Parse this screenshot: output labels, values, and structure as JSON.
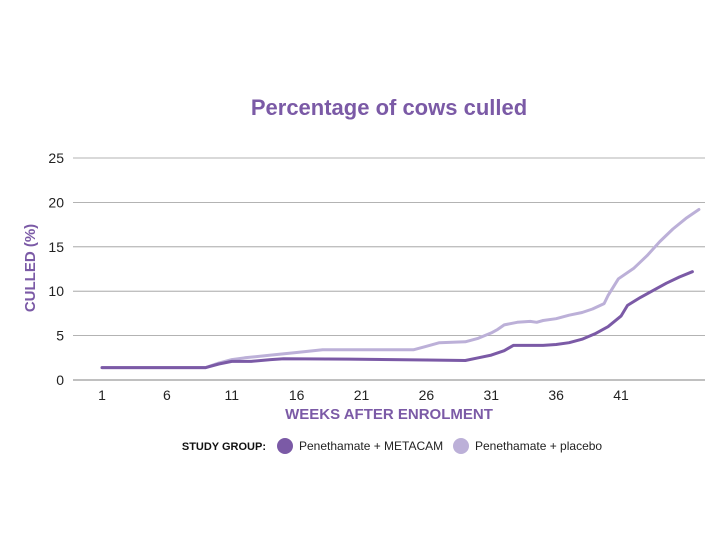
{
  "colors": {
    "accent": "#7b5aa6",
    "series_dark": "#7b5aa6",
    "series_light": "#bcb0d8",
    "grid": "#9a9a9a"
  },
  "chart_data": {
    "type": "line",
    "title": "Percentage of cows culled",
    "xlabel": "WEEKS AFTER ENROLMENT",
    "ylabel": "CULLED (%)",
    "xlim": [
      0,
      47
    ],
    "ylim": [
      0,
      25
    ],
    "x_ticks": [
      1,
      6,
      11,
      16,
      21,
      26,
      31,
      36,
      41
    ],
    "y_ticks": [
      0,
      5,
      10,
      15,
      20,
      25
    ],
    "grid": true,
    "legend_position": "bottom",
    "legend_title": "STUDY GROUP:",
    "series": [
      {
        "name": "Penethamate + METACAM",
        "color": "#7b5aa6",
        "points": [
          [
            1,
            1.4
          ],
          [
            9,
            1.4
          ],
          [
            10,
            1.8
          ],
          [
            11,
            2.1
          ],
          [
            12.5,
            2.1
          ],
          [
            14,
            2.3
          ],
          [
            15,
            2.4
          ],
          [
            20,
            2.35
          ],
          [
            26,
            2.25
          ],
          [
            29,
            2.2
          ],
          [
            30,
            2.5
          ],
          [
            31,
            2.8
          ],
          [
            32,
            3.3
          ],
          [
            32.7,
            3.9
          ],
          [
            34,
            3.9
          ],
          [
            35,
            3.9
          ],
          [
            36,
            4.0
          ],
          [
            37,
            4.2
          ],
          [
            38,
            4.6
          ],
          [
            39,
            5.2
          ],
          [
            40,
            6.0
          ],
          [
            41,
            7.2
          ],
          [
            41.5,
            8.4
          ],
          [
            42.5,
            9.3
          ],
          [
            43.5,
            10.1
          ],
          [
            44.5,
            10.9
          ],
          [
            45.5,
            11.6
          ],
          [
            46.5,
            12.2
          ]
        ]
      },
      {
        "name": "Penethamate + placebo",
        "color": "#bcb0d8",
        "points": [
          [
            1,
            1.4
          ],
          [
            9,
            1.4
          ],
          [
            10,
            1.9
          ],
          [
            11,
            2.3
          ],
          [
            12,
            2.5
          ],
          [
            14,
            2.8
          ],
          [
            16,
            3.1
          ],
          [
            18,
            3.4
          ],
          [
            25,
            3.4
          ],
          [
            26,
            3.8
          ],
          [
            27,
            4.2
          ],
          [
            29,
            4.3
          ],
          [
            30,
            4.7
          ],
          [
            31,
            5.3
          ],
          [
            31.5,
            5.7
          ],
          [
            32,
            6.2
          ],
          [
            33,
            6.5
          ],
          [
            34,
            6.6
          ],
          [
            34.5,
            6.5
          ],
          [
            35,
            6.7
          ],
          [
            36,
            6.9
          ],
          [
            37,
            7.3
          ],
          [
            38,
            7.6
          ],
          [
            38.8,
            8.0
          ],
          [
            39.7,
            8.6
          ],
          [
            40,
            9.5
          ],
          [
            40.8,
            11.4
          ],
          [
            42,
            12.6
          ],
          [
            43,
            14.0
          ],
          [
            44,
            15.6
          ],
          [
            45,
            17.0
          ],
          [
            46,
            18.2
          ],
          [
            47,
            19.2
          ]
        ]
      }
    ]
  }
}
